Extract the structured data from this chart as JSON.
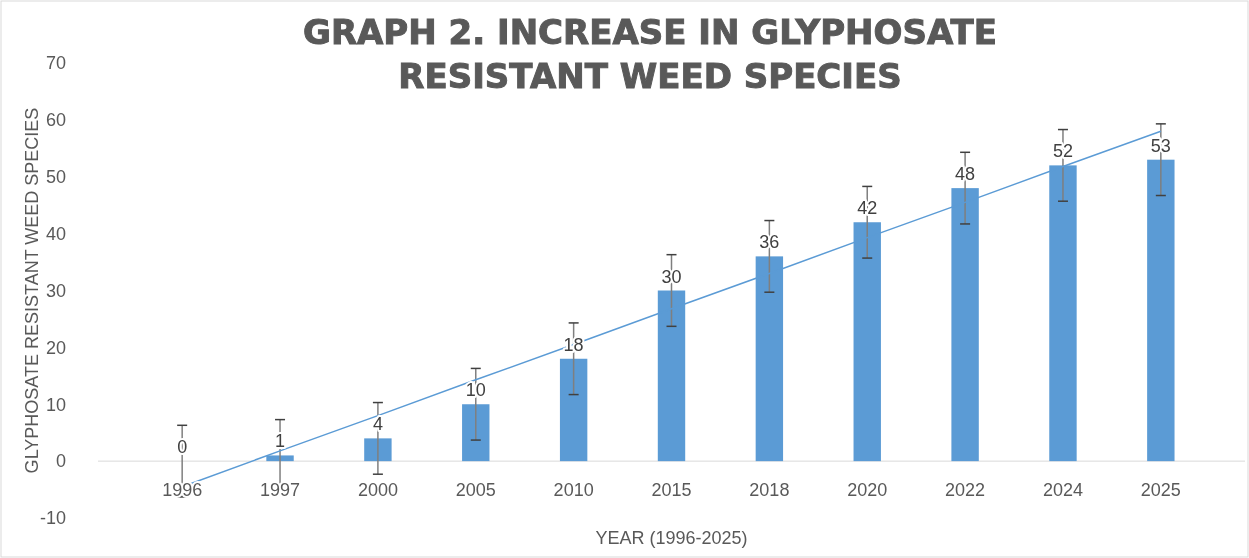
{
  "chart_data": {
    "type": "bar",
    "title": "GRAPH 2. INCREASE IN GLYPHOSATE RESISTANT WEED SPECIES",
    "xlabel": "YEAR (1996-2025)",
    "ylabel": "GLYPHOSATE RESISTANT WEED SPECIES",
    "categories": [
      "1996",
      "1997",
      "2000",
      "2005",
      "2010",
      "2015",
      "2018",
      "2020",
      "2022",
      "2024",
      "2025"
    ],
    "series": [
      {
        "color": "#5b9bd5",
        "values": [
          0,
          1,
          4,
          10,
          18,
          30,
          36,
          42,
          48,
          52,
          53
        ],
        "value_labels": [
          "0",
          "1",
          "4",
          "10",
          "18",
          "30",
          "36",
          "42",
          "48",
          "52",
          "53"
        ],
        "errors": [
          6.3,
          6.3,
          6.3,
          6.3,
          6.3,
          6.3,
          6.3,
          6.3,
          6.3,
          6.3,
          6.3
        ]
      },
      {
        "type": "line",
        "color": "#5b9bd5",
        "values": [
          -4.5,
          1.8,
          8,
          14.3,
          20.5,
          26.8,
          33,
          39.3,
          45.5,
          51.8,
          58
        ]
      }
    ],
    "ylim": [
      -10,
      70
    ],
    "yticks": [
      -10,
      0,
      10,
      20,
      30,
      40,
      50,
      60,
      70
    ],
    "grid": false
  }
}
